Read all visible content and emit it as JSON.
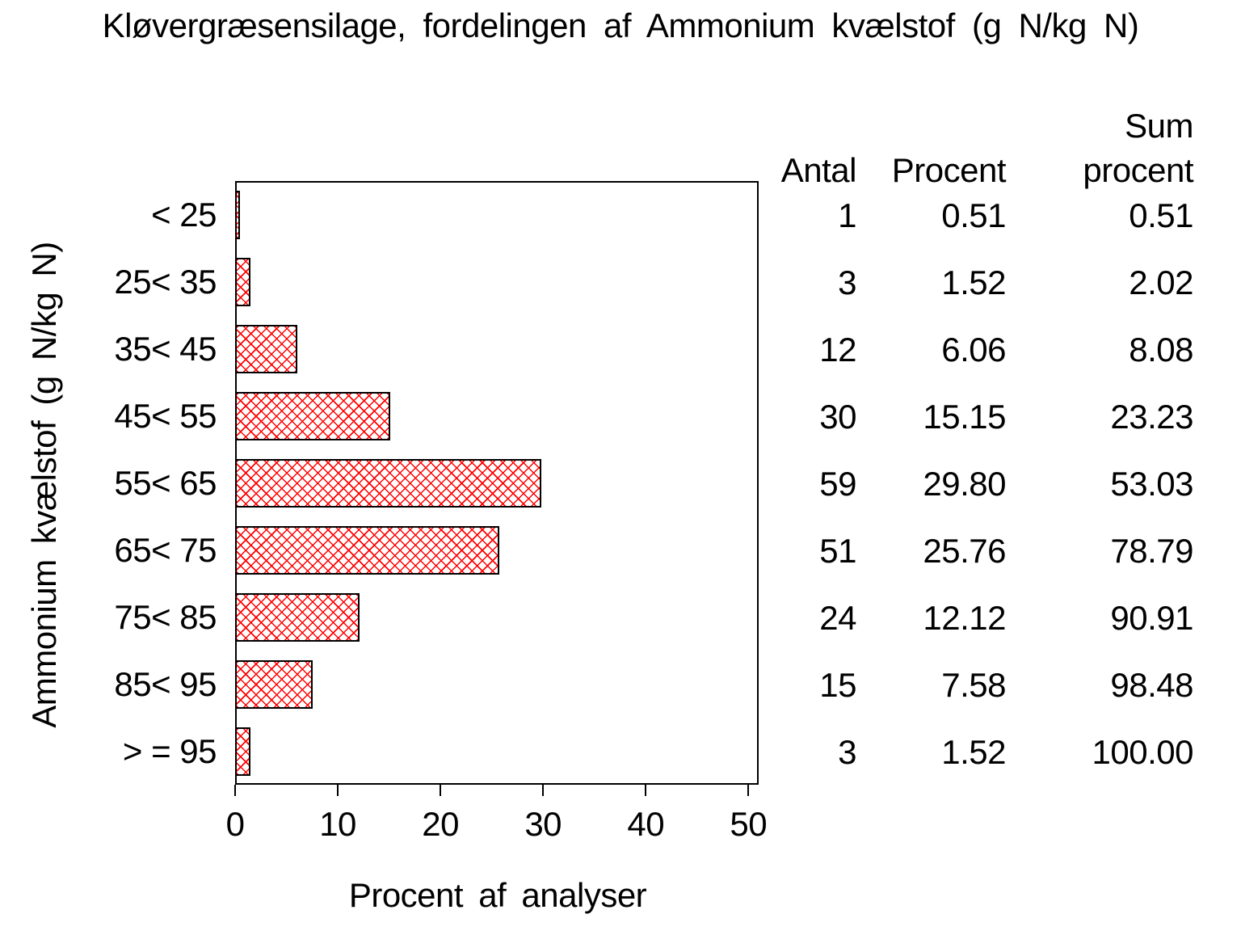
{
  "title": "Kløvergræsensilage, fordelingen af Ammonium kvælstof (g N/kg N)",
  "chart_data": {
    "type": "bar",
    "orientation": "horizontal",
    "title": "Kløvergræsensilage, fordelingen af Ammonium kvælstof (g N/kg N)",
    "xlabel": "Procent af analyser",
    "ylabel": "Ammonium kvælstof (g N/kg N)",
    "categories": [
      "< 25",
      "25< 35",
      "35< 45",
      "45< 55",
      "55< 65",
      "65< 75",
      "75< 85",
      "85< 95",
      "> = 95"
    ],
    "values": [
      0.51,
      1.52,
      6.06,
      15.15,
      29.8,
      25.76,
      12.12,
      7.58,
      1.52
    ],
    "counts": [
      1,
      3,
      12,
      30,
      59,
      51,
      24,
      15,
      3
    ],
    "cumulative": [
      0.51,
      2.02,
      8.08,
      23.23,
      53.03,
      78.79,
      90.91,
      98.48,
      100.0
    ],
    "xlim": [
      0,
      51
    ],
    "xticks": [
      0,
      10,
      20,
      30,
      40,
      50
    ],
    "grid": false,
    "legend": false,
    "bar_pattern": "diagonal-crosshatch",
    "bar_pattern_color": "#ff0000",
    "bar_border_color": "#000000",
    "frame_color": "#000000"
  },
  "table": {
    "header": {
      "antal": "Antal",
      "procent": "Procent",
      "sum_line1": "Sum",
      "sum_line2": "procent"
    },
    "rows": [
      {
        "antal": "1",
        "procent": "0.51",
        "sum": "0.51"
      },
      {
        "antal": "3",
        "procent": "1.52",
        "sum": "2.02"
      },
      {
        "antal": "12",
        "procent": "6.06",
        "sum": "8.08"
      },
      {
        "antal": "30",
        "procent": "15.15",
        "sum": "23.23"
      },
      {
        "antal": "59",
        "procent": "29.80",
        "sum": "53.03"
      },
      {
        "antal": "51",
        "procent": "25.76",
        "sum": "78.79"
      },
      {
        "antal": "24",
        "procent": "12.12",
        "sum": "90.91"
      },
      {
        "antal": "15",
        "procent": "7.58",
        "sum": "98.48"
      },
      {
        "antal": "3",
        "procent": "1.52",
        "sum": "100.00"
      }
    ]
  }
}
